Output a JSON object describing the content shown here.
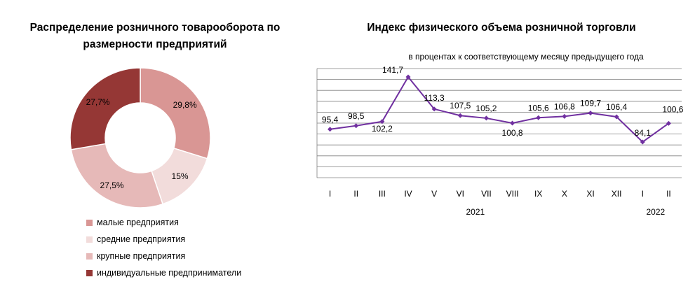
{
  "chart_data": [
    {
      "type": "pie",
      "title": "Распределение розничного товарооборота по размерности предприятий",
      "slices": [
        {
          "name": "малые предприятия",
          "value": 29.8,
          "label": "29,8%",
          "color": "#d99694"
        },
        {
          "name": "средние предприятия",
          "value": 15,
          "label": "15%",
          "color": "#f2dcdb"
        },
        {
          "name": "крупные предприятия",
          "value": 27.5,
          "label": "27,5%",
          "color": "#e6b9b8"
        },
        {
          "name": "индивидуальные предприниматели",
          "value": 27.7,
          "label": "27,7%",
          "color": "#953735"
        }
      ]
    },
    {
      "type": "line",
      "title": "Индекс физического объема розничной торговли",
      "subtitle": "в процентах к соответствующему месяцу предыдущего года",
      "categories": [
        "I",
        "II",
        "III",
        "IV",
        "V",
        "VI",
        "VII",
        "VIII",
        "IX",
        "X",
        "XI",
        "XII",
        "I",
        "II"
      ],
      "year_labels": [
        "2021",
        "2022"
      ],
      "series": [
        {
          "color": "#7030a0",
          "values": [
            95.4,
            98.5,
            102.2,
            141.7,
            113.3,
            107.5,
            105.2,
            100.8,
            105.6,
            106.8,
            109.7,
            106.4,
            84.1,
            100.6
          ],
          "labels": [
            "95,4",
            "98,5",
            "102,2",
            "141,7",
            "113,3",
            "107,5",
            "105,2",
            "100,8",
            "105,6",
            "106,8",
            "109,7",
            "106,4",
            "84,1",
            "100,6"
          ]
        }
      ],
      "grid": true
    }
  ]
}
